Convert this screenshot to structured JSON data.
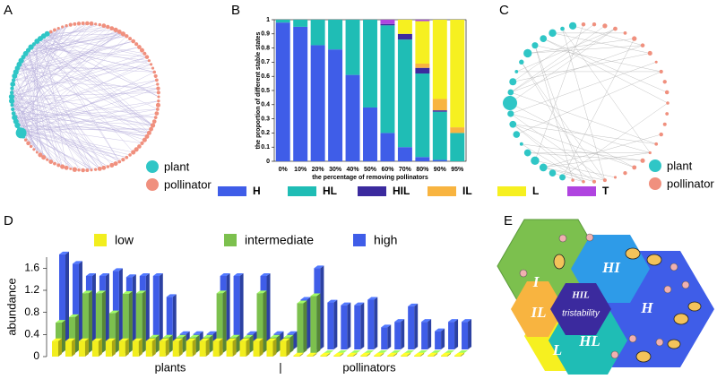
{
  "panel_labels": [
    "A",
    "B",
    "C",
    "D",
    "E"
  ],
  "panel_a": {
    "legend": [
      "plant",
      "pollinator"
    ]
  },
  "panel_c": {
    "legend": [
      "plant",
      "pollinator"
    ]
  },
  "panel_e": {
    "regions": [
      "I",
      "HI",
      "H",
      "IL",
      "HIL",
      "tristability",
      "L",
      "HL"
    ]
  },
  "chart_data": [
    {
      "type": "stacked_bar",
      "ylabel": "the proportion of different stable states",
      "xlabel": "the percentage of removing pollinators",
      "categories": [
        "0%",
        "10%",
        "20%",
        "30%",
        "40%",
        "50%",
        "60%",
        "70%",
        "80%",
        "90%",
        "95%"
      ],
      "series": [
        {
          "name": "H",
          "color": "#3f5de8",
          "values": [
            0.98,
            0.95,
            0.82,
            0.79,
            0.61,
            0.38,
            0.2,
            0.1,
            0.03,
            0.01,
            0
          ]
        },
        {
          "name": "HL",
          "color": "#1fbdb5",
          "values": [
            0.02,
            0.05,
            0.18,
            0.21,
            0.39,
            0.62,
            0.76,
            0.76,
            0.59,
            0.34,
            0.2
          ]
        },
        {
          "name": "HIL",
          "color": "#3b2a9e",
          "values": [
            0,
            0,
            0,
            0,
            0,
            0,
            0.01,
            0.04,
            0.04,
            0.01,
            0
          ]
        },
        {
          "name": "IL",
          "color": "#f8b440",
          "values": [
            0,
            0,
            0,
            0,
            0,
            0,
            0,
            0,
            0.03,
            0.08,
            0.04
          ]
        },
        {
          "name": "L",
          "color": "#f6f020",
          "values": [
            0,
            0,
            0,
            0,
            0,
            0,
            0,
            0.1,
            0.3,
            0.56,
            0.76
          ]
        },
        {
          "name": "T",
          "color": "#b044e0",
          "values": [
            0,
            0,
            0,
            0,
            0,
            0,
            0.03,
            0,
            0.01,
            0,
            0
          ]
        }
      ],
      "ylim": [
        0,
        1
      ],
      "yticks": [
        0,
        0.1,
        0.2,
        0.3,
        0.4,
        0.5,
        0.6,
        0.7,
        0.8,
        0.9,
        1
      ]
    },
    {
      "type": "bar3d",
      "ylabel": "abundance",
      "annotations": [
        "plants",
        "|",
        "pollinators"
      ],
      "categories": [
        null,
        null,
        null,
        null,
        null,
        null,
        null,
        null,
        null,
        null,
        null,
        null,
        null,
        null,
        null,
        null,
        null,
        null,
        null,
        null,
        null,
        null,
        null,
        null,
        null,
        null,
        null,
        null,
        null,
        null,
        null
      ],
      "series": [
        {
          "name": "low",
          "color": "#f2ee1e",
          "values": [
            0.28,
            0.28,
            0.28,
            0.28,
            0.28,
            0.28,
            0.28,
            0.28,
            0.28,
            0.28,
            0.28,
            0.28,
            0.28,
            0.28,
            0.28,
            0.28,
            0.28,
            0.28,
            0.02,
            0.02,
            0.02,
            0.02,
            0.02,
            0.02,
            0.02,
            0.02,
            0.02,
            0.02,
            0.02,
            0.02,
            0.02
          ]
        },
        {
          "name": "intermediate",
          "color": "#7cc04e",
          "values": [
            0.55,
            0.65,
            1.08,
            1.08,
            0.72,
            1.07,
            1.08,
            0.28,
            0.28,
            0.28,
            0.28,
            0.28,
            1.08,
            0.28,
            0.28,
            1.08,
            0.28,
            0.28,
            0.9,
            1.03,
            0,
            0,
            0,
            0,
            0,
            0,
            0,
            0,
            0,
            0,
            0
          ]
        },
        {
          "name": "high",
          "color": "#3f5de8",
          "values": [
            1.72,
            1.55,
            1.33,
            1.33,
            1.42,
            1.31,
            1.33,
            1.33,
            0.95,
            0.28,
            0.28,
            0.28,
            1.33,
            1.33,
            0.28,
            1.33,
            0.28,
            0.28,
            0.9,
            1.47,
            0.85,
            0.8,
            0.8,
            0.9,
            0.4,
            0.5,
            0.78,
            0.5,
            0.33,
            0.5,
            0.5
          ]
        }
      ],
      "ylim": [
        0,
        1.8
      ],
      "yticks": [
        0,
        0.4,
        0.8,
        1.2,
        1.6
      ]
    }
  ]
}
